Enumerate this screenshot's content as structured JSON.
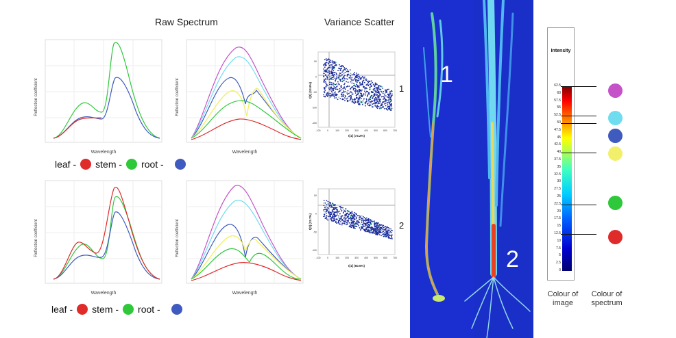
{
  "headings": {
    "raw": "Raw Spectrum",
    "variance": "Variance Scatter"
  },
  "legend": [
    {
      "label": "leaf",
      "color": "#e02b2b"
    },
    {
      "label": "stem",
      "color": "#2ec83a"
    },
    {
      "label": "root",
      "color": "#3f5bbf"
    }
  ],
  "axis": {
    "wavelength": "Wavelength",
    "reflection": "Reflection coefficient"
  },
  "rows": [
    "1",
    "2"
  ],
  "scatter": [
    {
      "xlabel": "t[1] (73.2%)",
      "ylabel": "t[2] (13.6%)",
      "xticks": [
        "-100",
        "0",
        "100",
        "200",
        "300",
        "400",
        "500",
        "600",
        "700"
      ],
      "yticks": [
        "50",
        "0",
        "-50",
        "-100",
        "-150"
      ]
    },
    {
      "xlabel": "t[1] (60.5%)",
      "ylabel": "t[2] (12.7%)",
      "xticks": [
        "-100",
        "0",
        "100",
        "200",
        "300",
        "400",
        "500",
        "600",
        "700"
      ],
      "yticks": [
        "50",
        "0",
        "-50",
        "-100"
      ]
    }
  ],
  "plant_labels": [
    "1",
    "2"
  ],
  "colorbar": {
    "title": "Intensity",
    "ticks": [
      "62.5",
      "60",
      "57.5",
      "55",
      "52.5",
      "50",
      "47.5",
      "45",
      "42.5",
      "40",
      "37.5",
      "35",
      "32.5",
      "30",
      "27.5",
      "25",
      "22.5",
      "20",
      "17.5",
      "15",
      "12.5",
      "10",
      "7.5",
      "5",
      "2.5",
      "0"
    ]
  },
  "markers": [
    {
      "tick": "62.5",
      "color": "#c552c9"
    },
    {
      "tick": "52.5",
      "color": "#6fdcf0"
    },
    {
      "tick": "50",
      "color": "#3f5bbf"
    },
    {
      "tick": "40",
      "color": "#f2f06a"
    },
    {
      "tick": "22.5",
      "color": "#2ec83a"
    },
    {
      "tick": "12.5",
      "color": "#e02b2b"
    }
  ],
  "footers": {
    "image": "Colour of image",
    "spectrum": "Colour of spectrum"
  }
}
